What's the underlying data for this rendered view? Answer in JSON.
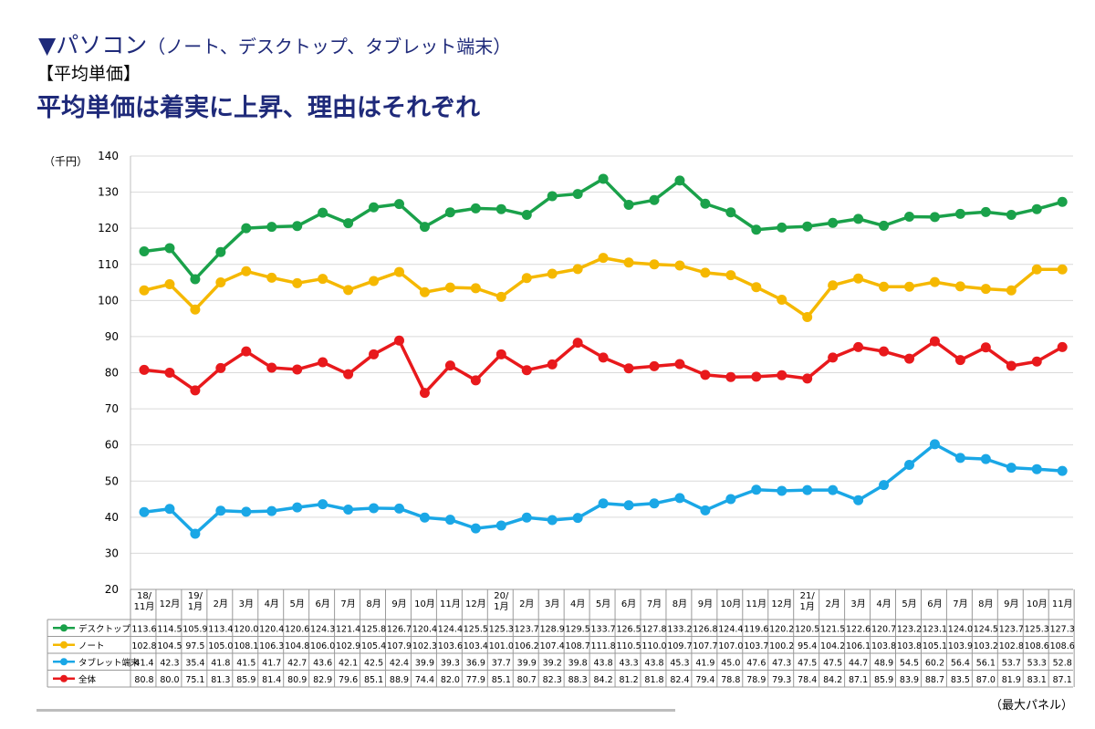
{
  "header": {
    "marker": "▼",
    "title": "パソコン",
    "subtitle": "（ノート、デスクトップ、タブレット端末）",
    "section": "【平均単価】",
    "headline": "平均単価は着実に上昇、理由はそれぞれ"
  },
  "source_note": "（最大パネル）",
  "colors": {
    "desktop": "#1aa14a",
    "note": "#f5b800",
    "tablet": "#1aa7e6",
    "total": "#e8191c"
  },
  "chart_data": {
    "type": "line",
    "ylabel": "（千円）",
    "ylim": [
      20,
      140
    ],
    "yticks": [
      20,
      30,
      40,
      50,
      60,
      70,
      80,
      90,
      100,
      110,
      120,
      130,
      140
    ],
    "grid": true,
    "legend": "table-left",
    "categories": [
      [
        "18/",
        "11月"
      ],
      [
        "12月"
      ],
      [
        "19/",
        "1月"
      ],
      [
        "2月"
      ],
      [
        "3月"
      ],
      [
        "4月"
      ],
      [
        "5月"
      ],
      [
        "6月"
      ],
      [
        "7月"
      ],
      [
        "8月"
      ],
      [
        "9月"
      ],
      [
        "10月"
      ],
      [
        "11月"
      ],
      [
        "12月"
      ],
      [
        "20/",
        "1月"
      ],
      [
        "2月"
      ],
      [
        "3月"
      ],
      [
        "4月"
      ],
      [
        "5月"
      ],
      [
        "6月"
      ],
      [
        "7月"
      ],
      [
        "8月"
      ],
      [
        "9月"
      ],
      [
        "10月"
      ],
      [
        "11月"
      ],
      [
        "12月"
      ],
      [
        "21/",
        "1月"
      ],
      [
        "2月"
      ],
      [
        "3月"
      ],
      [
        "4月"
      ],
      [
        "5月"
      ],
      [
        "6月"
      ],
      [
        "7月"
      ],
      [
        "8月"
      ],
      [
        "9月"
      ],
      [
        "10月"
      ],
      [
        "11月"
      ]
    ],
    "series": [
      {
        "name": "デスクトップ",
        "color_key": "desktop",
        "values": [
          113.6,
          114.5,
          105.9,
          113.4,
          120.0,
          120.4,
          120.6,
          124.3,
          121.4,
          125.8,
          126.7,
          120.4,
          124.4,
          125.5,
          125.3,
          123.7,
          128.9,
          129.5,
          133.7,
          126.5,
          127.8,
          133.2,
          126.8,
          124.4,
          119.6,
          120.2,
          120.5,
          121.5,
          122.6,
          120.7,
          123.2,
          123.1,
          124.0,
          124.5,
          123.7,
          125.3,
          127.3
        ]
      },
      {
        "name": "ノート",
        "color_key": "note",
        "values": [
          102.8,
          104.5,
          97.5,
          105.0,
          108.1,
          106.3,
          104.8,
          106.0,
          102.9,
          105.4,
          107.9,
          102.3,
          103.6,
          103.4,
          101.0,
          106.2,
          107.4,
          108.7,
          111.8,
          110.5,
          110.0,
          109.7,
          107.7,
          107.0,
          103.7,
          100.2,
          95.4,
          104.2,
          106.1,
          103.8,
          103.8,
          105.1,
          103.9,
          103.2,
          102.8,
          108.6,
          108.6
        ]
      },
      {
        "name": "タブレット端末",
        "color_key": "tablet",
        "values": [
          41.4,
          42.3,
          35.4,
          41.8,
          41.5,
          41.7,
          42.7,
          43.6,
          42.1,
          42.5,
          42.4,
          39.9,
          39.3,
          36.9,
          37.7,
          39.9,
          39.2,
          39.8,
          43.8,
          43.3,
          43.8,
          45.3,
          41.9,
          45.0,
          47.6,
          47.3,
          47.5,
          47.5,
          44.7,
          48.9,
          54.5,
          60.2,
          56.4,
          56.1,
          53.7,
          53.3,
          52.8
        ]
      },
      {
        "name": "全体",
        "color_key": "total",
        "values": [
          80.8,
          80.0,
          75.1,
          81.3,
          85.9,
          81.4,
          80.9,
          82.9,
          79.6,
          85.1,
          88.9,
          74.4,
          82.0,
          77.9,
          85.1,
          80.7,
          82.3,
          88.3,
          84.2,
          81.2,
          81.8,
          82.4,
          79.4,
          78.8,
          78.9,
          79.3,
          78.4,
          84.2,
          87.1,
          85.9,
          83.9,
          88.7,
          83.5,
          87.0,
          81.9,
          83.1,
          87.1
        ]
      }
    ]
  }
}
